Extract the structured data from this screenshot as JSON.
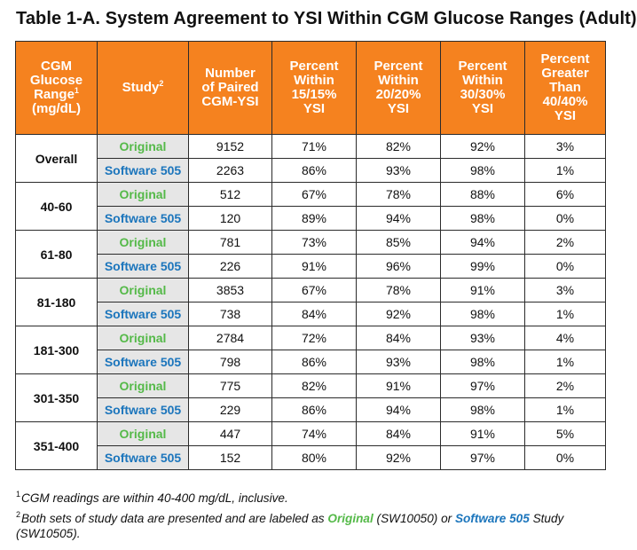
{
  "title": "Table 1-A. System Agreement to YSI Within CGM Glucose Ranges (Adult)",
  "headers": {
    "range": {
      "l1": "CGM",
      "l2": "Glucose",
      "l3": "Range",
      "sup": "1",
      "l4": "(mg/dL)"
    },
    "study": {
      "text": "Study",
      "sup": "2"
    },
    "paired": {
      "l1": "Number",
      "l2": "of Paired",
      "l3": "CGM-YSI"
    },
    "p15": {
      "l1": "Percent",
      "l2": "Within",
      "l3": "15/15%",
      "l4": "YSI"
    },
    "p20": {
      "l1": "Percent",
      "l2": "Within",
      "l3": "20/20%",
      "l4": "YSI"
    },
    "p30": {
      "l1": "Percent",
      "l2": "Within",
      "l3": "30/30%",
      "l4": "YSI"
    },
    "p40": {
      "l1": "Percent",
      "l2": "Greater",
      "l3": "Than",
      "l4": "40/40%",
      "l5": "YSI"
    }
  },
  "study_labels": {
    "original": "Original",
    "software": "Software 505"
  },
  "groups": [
    {
      "range": "Overall",
      "rows": [
        [
          "9152",
          "71%",
          "82%",
          "92%",
          "3%"
        ],
        [
          "2263",
          "86%",
          "93%",
          "98%",
          "1%"
        ]
      ]
    },
    {
      "range": "40-60",
      "rows": [
        [
          "512",
          "67%",
          "78%",
          "88%",
          "6%"
        ],
        [
          "120",
          "89%",
          "94%",
          "98%",
          "0%"
        ]
      ]
    },
    {
      "range": "61-80",
      "rows": [
        [
          "781",
          "73%",
          "85%",
          "94%",
          "2%"
        ],
        [
          "226",
          "91%",
          "96%",
          "99%",
          "0%"
        ]
      ]
    },
    {
      "range": "81-180",
      "rows": [
        [
          "3853",
          "67%",
          "78%",
          "91%",
          "3%"
        ],
        [
          "738",
          "84%",
          "92%",
          "98%",
          "1%"
        ]
      ]
    },
    {
      "range": "181-300",
      "rows": [
        [
          "2784",
          "72%",
          "84%",
          "93%",
          "4%"
        ],
        [
          "798",
          "86%",
          "93%",
          "98%",
          "1%"
        ]
      ]
    },
    {
      "range": "301-350",
      "rows": [
        [
          "775",
          "82%",
          "91%",
          "97%",
          "2%"
        ],
        [
          "229",
          "86%",
          "94%",
          "98%",
          "1%"
        ]
      ]
    },
    {
      "range": "351-400",
      "rows": [
        [
          "447",
          "74%",
          "84%",
          "91%",
          "5%"
        ],
        [
          "152",
          "80%",
          "92%",
          "97%",
          "0%"
        ]
      ]
    }
  ],
  "footnotes": {
    "fn1": {
      "sup": "1",
      "text": "CGM readings are within 40-400 mg/dL, inclusive."
    },
    "fn2": {
      "sup": "2",
      "before": "Both sets of study data are presented and are labeled as ",
      "orig": "Original",
      "mid": " (SW10050) or ",
      "soft": "Software 505",
      "after": " Study (SW10505)."
    }
  },
  "colors": {
    "header_bg": "#f5821f",
    "original": "#54b948",
    "software": "#1b75bc",
    "study_bg": "#e6e6e6"
  }
}
